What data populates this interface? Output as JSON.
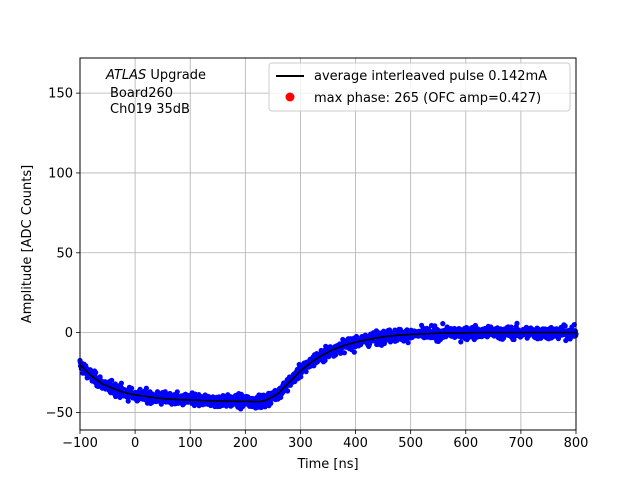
{
  "chart_data": {
    "type": "scatter",
    "title": "",
    "xlabel": "Time [ns]",
    "ylabel": "Amplitude [ADC Counts]",
    "xlim": [
      -100,
      800
    ],
    "ylim": [
      -61,
      172
    ],
    "xticks": [
      -100,
      0,
      100,
      200,
      300,
      400,
      500,
      600,
      700,
      800
    ],
    "yticks": [
      -50,
      0,
      50,
      100,
      150
    ],
    "xtick_labels": [
      "−100",
      "0",
      "100",
      "200",
      "300",
      "400",
      "500",
      "600",
      "700",
      "800"
    ],
    "ytick_labels": [
      "−50",
      "0",
      "50",
      "100",
      "150"
    ],
    "grid": true,
    "legend_position": "top-right",
    "annotation": {
      "line1_italic": "ATLAS",
      "line1_rest": " Upgrade",
      "line2": "Board260",
      "line3": "Ch019 35dB"
    },
    "series": [
      {
        "name": "average interleaved pulse 0.142mA",
        "kind": "line",
        "color": "#000000",
        "x": [
          -100,
          -80,
          -60,
          -40,
          -20,
          0,
          20,
          40,
          60,
          80,
          100,
          120,
          140,
          160,
          180,
          200,
          220,
          230,
          240,
          260,
          280,
          300,
          320,
          340,
          360,
          380,
          400,
          420,
          440,
          460,
          480,
          500,
          520,
          540,
          560,
          580,
          600,
          620,
          640,
          660,
          680,
          700,
          720,
          740,
          760,
          780,
          800
        ],
        "y": [
          -20,
          -27,
          -32,
          -35,
          -37.5,
          -39,
          -40,
          -41,
          -41.5,
          -42,
          -42.2,
          -42.5,
          -42.7,
          -42.8,
          -43,
          -43,
          -43.2,
          -43,
          -42,
          -38,
          -31,
          -24,
          -18.5,
          -14,
          -10.5,
          -8,
          -6,
          -4.5,
          -3.2,
          -2.2,
          -1.6,
          -1.1,
          -0.8,
          -0.5,
          -0.3,
          -0.2,
          -0.1,
          0,
          0,
          0,
          0,
          0,
          0,
          0,
          0,
          0,
          0
        ]
      },
      {
        "name": "",
        "kind": "scatter",
        "color": "#0000ff",
        "point_count": 1800,
        "noise_amplitude": 4,
        "follows": "average interleaved pulse 0.142mA"
      },
      {
        "name": "max phase: 265 (OFC amp=0.427)",
        "kind": "marker",
        "color": "#ff0000",
        "x": [],
        "y": []
      }
    ]
  }
}
